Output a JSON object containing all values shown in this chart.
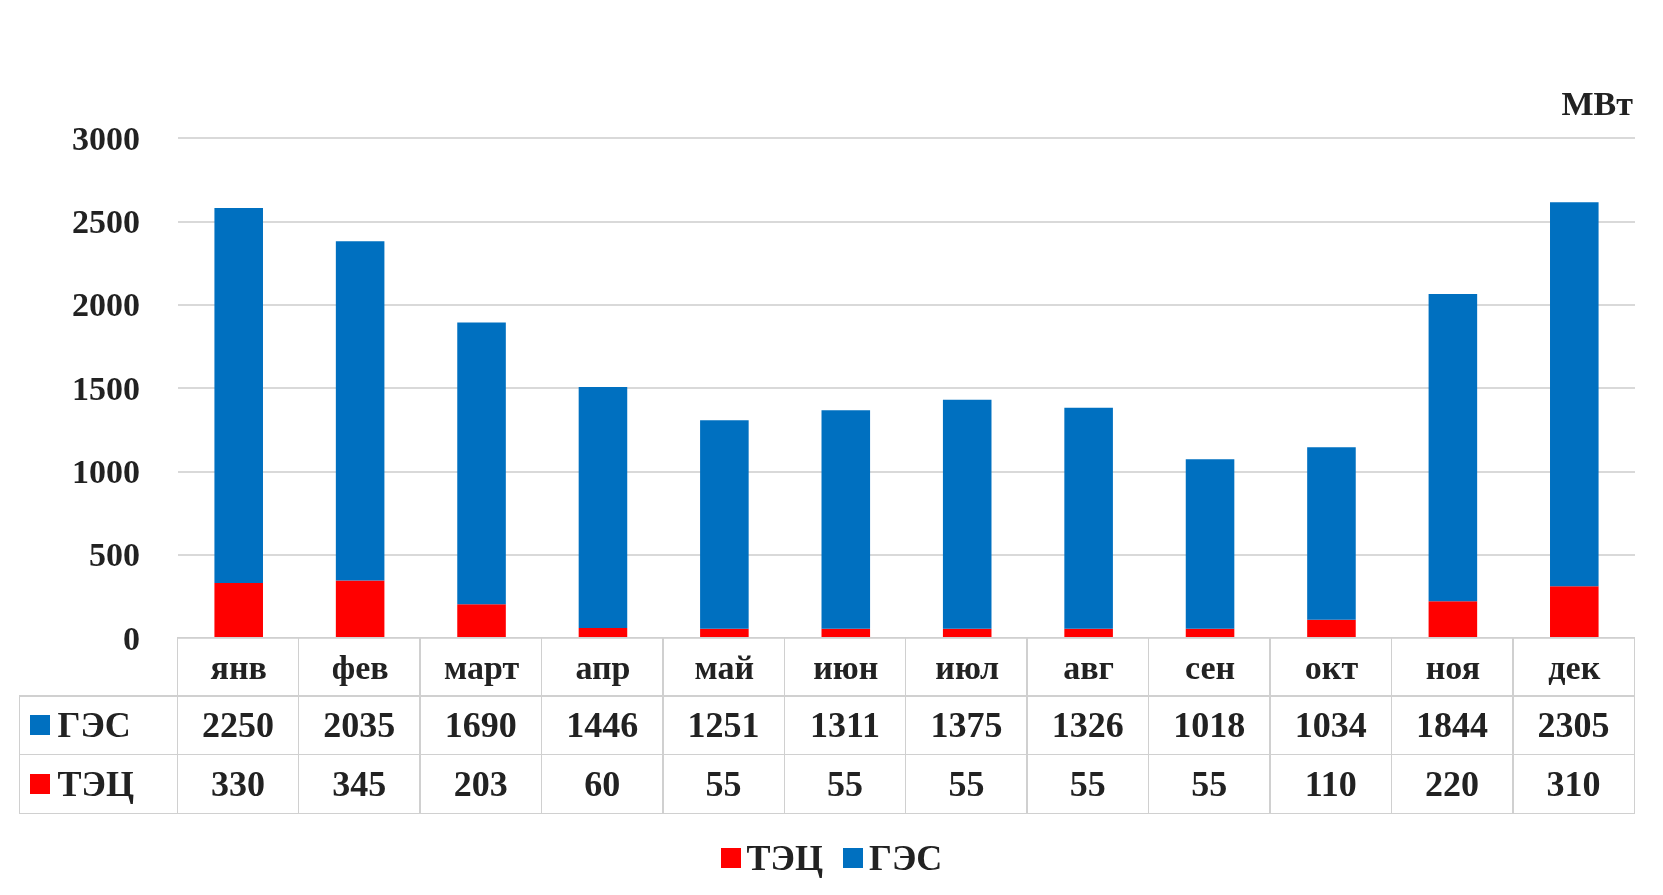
{
  "chart_data": {
    "type": "bar",
    "stacked": true,
    "ylabel": "МВт",
    "categories": [
      "янв",
      "фев",
      "март",
      "апр",
      "май",
      "июн",
      "июл",
      "авг",
      "сен",
      "окт",
      "ноя",
      "дек"
    ],
    "series": [
      {
        "name": "ТЭЦ",
        "color": "#ff0000",
        "values": [
          330,
          345,
          203,
          60,
          55,
          55,
          55,
          55,
          55,
          110,
          220,
          310
        ]
      },
      {
        "name": "ГЭС",
        "color": "#0070c0",
        "values": [
          2250,
          2035,
          1690,
          1446,
          1251,
          1311,
          1375,
          1326,
          1018,
          1034,
          1844,
          2305
        ]
      }
    ],
    "ylim": [
      0,
      3000
    ],
    "yticks": [
      0,
      500,
      1000,
      1500,
      2000,
      2500,
      3000
    ],
    "grid": "y",
    "legend": "bottom",
    "data_labels": true
  }
}
